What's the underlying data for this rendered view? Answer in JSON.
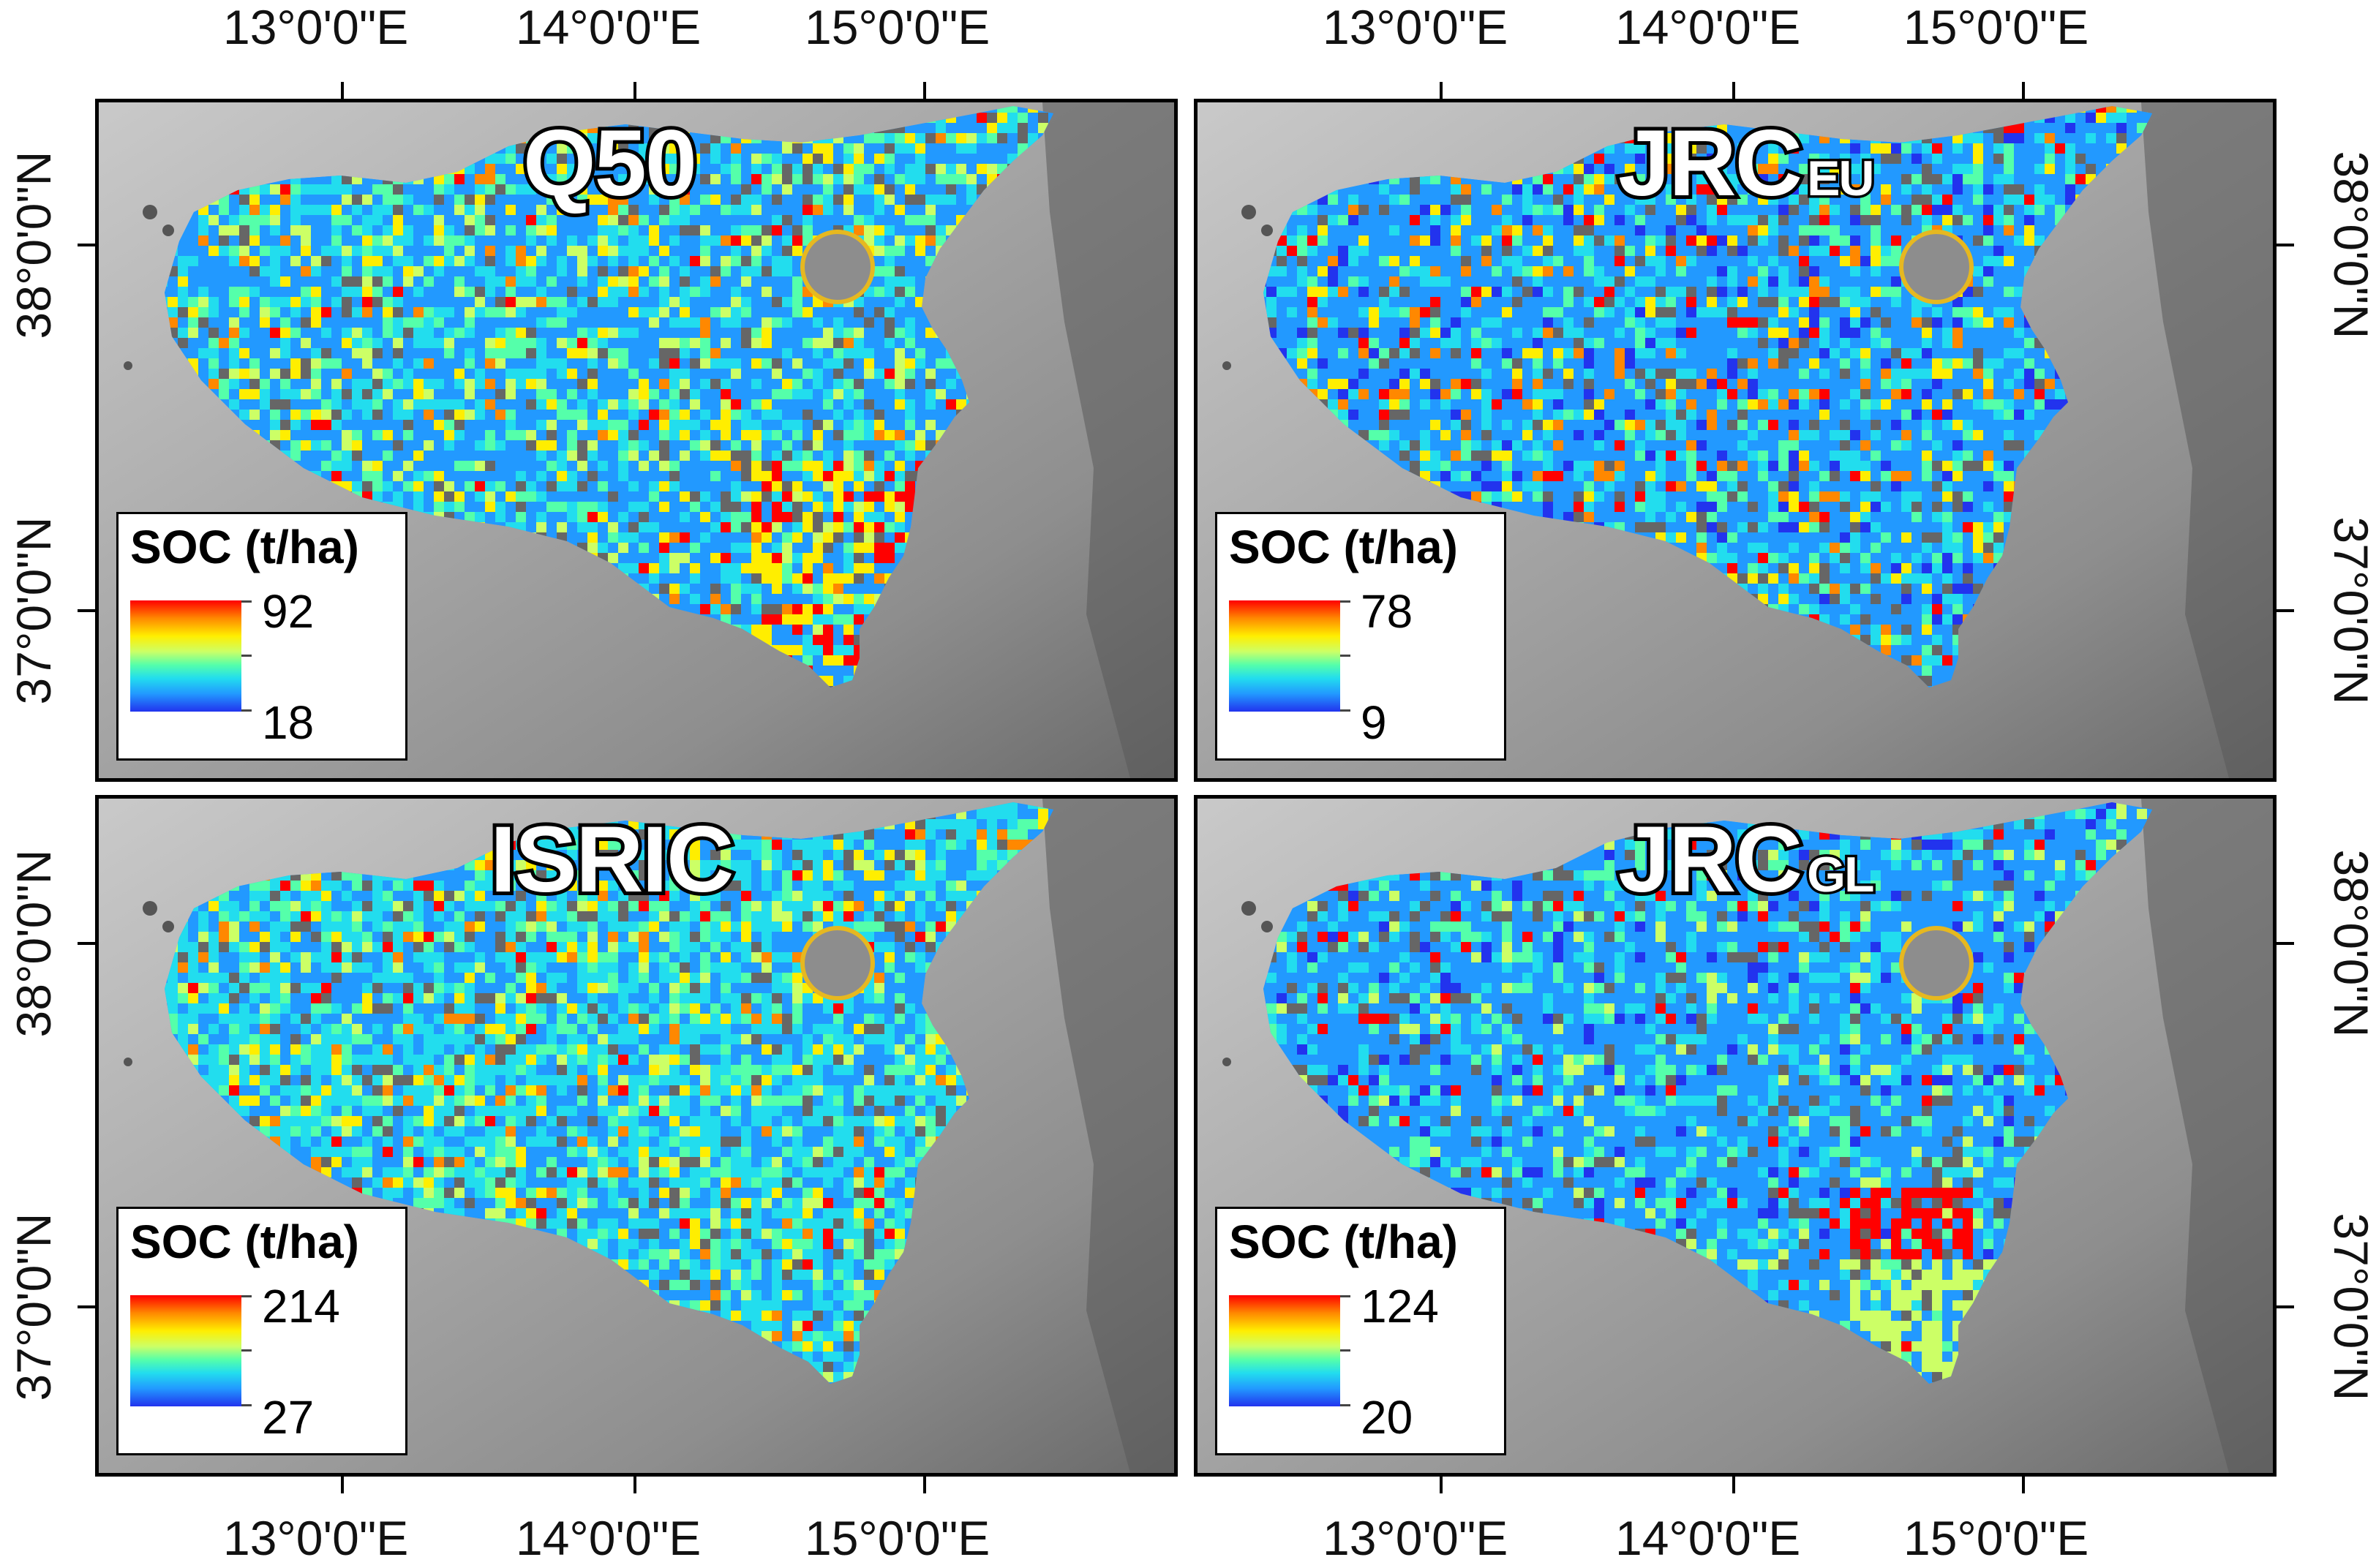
{
  "figure": {
    "x_labels": [
      "13°0'0\"E",
      "14°0'0\"E",
      "15°0'0\"E"
    ],
    "y_labels": [
      "38°0'0\"N",
      "37°0'0\"N"
    ],
    "legend_title": "SOC (t/ha)",
    "colors": {
      "ramp": [
        "#ff0000",
        "#ff8800",
        "#ffee00",
        "#ccff66",
        "#55ffaa",
        "#22ddee",
        "#2299ff",
        "#2233ee"
      ],
      "hillshade": "#9a9a9a",
      "frame": "#000000"
    }
  },
  "panels": [
    {
      "id": "q50",
      "title": "Q50",
      "subscript": "",
      "legend_max": "92",
      "legend_min": "18"
    },
    {
      "id": "jrc-eu",
      "title": "JRC",
      "subscript": "EU",
      "legend_max": "78",
      "legend_min": "9"
    },
    {
      "id": "isric",
      "title": "ISRIC",
      "subscript": "",
      "legend_max": "214",
      "legend_min": "27"
    },
    {
      "id": "jrc-gl",
      "title": "JRC",
      "subscript": "GL",
      "legend_max": "124",
      "legend_min": "20"
    }
  ]
}
